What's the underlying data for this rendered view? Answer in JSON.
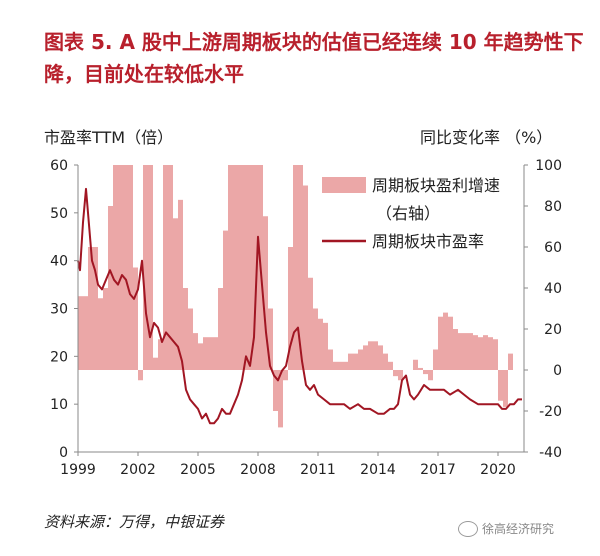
{
  "title": "图表 5.  A 股中上游周期板块的估值已经连续 10 年趋势性下降，目前处在较低水平",
  "source": "资料来源：万得，中银证券",
  "watermark": "徐高经济研究",
  "icons": {
    "watermark": "wechat-icon"
  },
  "colors": {
    "title": "#b8202c",
    "bar": "#eba7a7",
    "line": "#a11623"
  },
  "chart_data": {
    "type": "bar+line",
    "left_axis_title": "市盈率TTM（倍）",
    "right_axis_title": "同比变化率 （%）",
    "ylim_left": [
      0,
      60
    ],
    "ylim_right": [
      -40,
      100
    ],
    "xlim": [
      1999.0,
      2021.3
    ],
    "yticks_left": [
      "0",
      "10",
      "20",
      "30",
      "40",
      "50",
      "60"
    ],
    "yticks_right": [
      "-40",
      "-20",
      "0",
      "20",
      "40",
      "60",
      "80",
      "100"
    ],
    "xticks": [
      "1999",
      "2002",
      "2005",
      "2008",
      "2011",
      "2014",
      "2017",
      "2020"
    ],
    "legend": [
      {
        "type": "bar",
        "label": "周期板块盈利增速",
        "label2": "（右轴）"
      },
      {
        "type": "line",
        "label": "周期板块市盈率"
      }
    ],
    "series": [
      {
        "name": "周期板块盈利增速（右轴）",
        "type": "bar",
        "axis": "right",
        "bar_width_years": 0.25,
        "x": [
          1999.0,
          1999.25,
          1999.5,
          1999.75,
          2000.0,
          2000.25,
          2000.5,
          2000.75,
          2001.0,
          2001.25,
          2001.5,
          2001.75,
          2002.0,
          2002.25,
          2002.5,
          2002.75,
          2003.0,
          2003.25,
          2003.5,
          2003.75,
          2004.0,
          2004.25,
          2004.5,
          2004.75,
          2005.0,
          2005.25,
          2005.5,
          2005.75,
          2006.0,
          2006.25,
          2006.5,
          2006.75,
          2007.0,
          2007.25,
          2007.5,
          2007.75,
          2008.0,
          2008.25,
          2008.5,
          2008.75,
          2009.0,
          2009.25,
          2009.5,
          2009.75,
          2010.0,
          2010.25,
          2010.5,
          2010.75,
          2011.0,
          2011.25,
          2011.5,
          2011.75,
          2012.0,
          2012.25,
          2012.5,
          2012.75,
          2013.0,
          2013.25,
          2013.5,
          2013.75,
          2014.0,
          2014.25,
          2014.5,
          2014.75,
          2015.0,
          2015.25,
          2015.5,
          2015.75,
          2016.0,
          2016.25,
          2016.5,
          2016.75,
          2017.0,
          2017.25,
          2017.5,
          2017.75,
          2018.0,
          2018.25,
          2018.5,
          2018.75,
          2019.0,
          2019.25,
          2019.5,
          2019.75,
          2020.0,
          2020.25,
          2020.5,
          2020.75
        ],
        "values": [
          36,
          36,
          60,
          60,
          35,
          40,
          80,
          100,
          100,
          100,
          100,
          50,
          -5,
          100,
          100,
          6,
          15,
          100,
          100,
          74,
          83,
          40,
          30,
          18,
          13,
          16,
          16,
          16,
          40,
          68,
          100,
          100,
          100,
          100,
          100,
          100,
          100,
          75,
          30,
          -20,
          -28,
          -5,
          60,
          100,
          100,
          90,
          45,
          30,
          25,
          23,
          10,
          4,
          4,
          4,
          8,
          8,
          10,
          12,
          14,
          14,
          12,
          8,
          4,
          -3,
          -5,
          0,
          0,
          5,
          1,
          -2,
          -5,
          10,
          26,
          28,
          26,
          20,
          18,
          18,
          18,
          17,
          16,
          17,
          16,
          15,
          -15,
          -18,
          8,
          0
        ]
      },
      {
        "name": "周期板块市盈率",
        "type": "line",
        "axis": "left",
        "x": [
          1999.0,
          1999.1,
          1999.25,
          1999.4,
          1999.5,
          1999.6,
          1999.7,
          1999.85,
          2000.0,
          2000.2,
          2000.4,
          2000.6,
          2000.8,
          2001.0,
          2001.2,
          2001.4,
          2001.6,
          2001.8,
          2002.0,
          2002.2,
          2002.4,
          2002.6,
          2002.8,
          2003.0,
          2003.2,
          2003.4,
          2003.6,
          2003.8,
          2004.0,
          2004.2,
          2004.4,
          2004.6,
          2004.8,
          2005.0,
          2005.2,
          2005.4,
          2005.6,
          2005.8,
          2006.0,
          2006.2,
          2006.4,
          2006.6,
          2006.8,
          2007.0,
          2007.2,
          2007.4,
          2007.6,
          2007.8,
          2008.0,
          2008.2,
          2008.4,
          2008.6,
          2008.8,
          2009.0,
          2009.2,
          2009.4,
          2009.6,
          2009.8,
          2010.0,
          2010.2,
          2010.4,
          2010.6,
          2010.8,
          2011.0,
          2011.3,
          2011.6,
          2012.0,
          2012.3,
          2012.6,
          2013.0,
          2013.3,
          2013.6,
          2014.0,
          2014.3,
          2014.6,
          2014.8,
          2015.0,
          2015.2,
          2015.4,
          2015.6,
          2015.8,
          2016.0,
          2016.3,
          2016.6,
          2017.0,
          2017.3,
          2017.6,
          2018.0,
          2018.3,
          2018.6,
          2019.0,
          2019.3,
          2019.6,
          2020.0,
          2020.2,
          2020.4,
          2020.6,
          2020.8,
          2021.0,
          2021.2
        ],
        "values": [
          40,
          38,
          48,
          55,
          50,
          45,
          40,
          38,
          35,
          34,
          36,
          38,
          36,
          35,
          37,
          36,
          33,
          32,
          34,
          40,
          29,
          24,
          27,
          26,
          23,
          25,
          24,
          23,
          22,
          19,
          13,
          11,
          10,
          9,
          7,
          8,
          6,
          6,
          7,
          9,
          8,
          8,
          10,
          12,
          15,
          20,
          18,
          24,
          45,
          35,
          25,
          18,
          16,
          15,
          17,
          18,
          22,
          25,
          26,
          19,
          14,
          13,
          14,
          12,
          11,
          10,
          10,
          10,
          9,
          10,
          9,
          9,
          8,
          8,
          9,
          9,
          10,
          15,
          16,
          12,
          11,
          12,
          14,
          13,
          13,
          13,
          12,
          13,
          12,
          11,
          10,
          10,
          10,
          10,
          9,
          9,
          10,
          10,
          11,
          11
        ]
      }
    ]
  }
}
